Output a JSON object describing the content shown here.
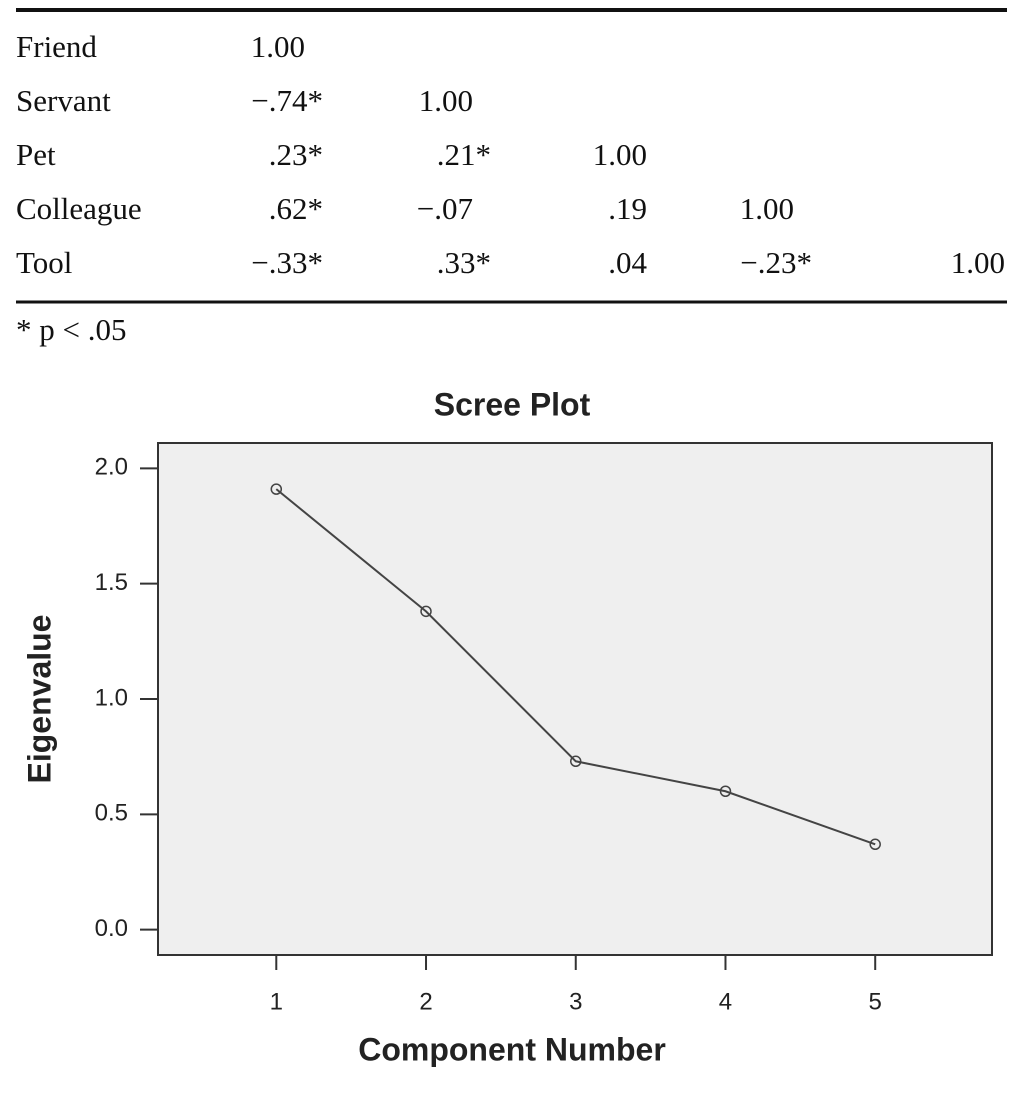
{
  "table": {
    "rows": [
      [
        "Friend",
        "1.00"
      ],
      [
        "Servant",
        "−.74*",
        "1.00"
      ],
      [
        "Pet",
        ".23*",
        ".21*",
        "1.00"
      ],
      [
        "Colleague",
        ".62*",
        "−.07",
        ".19",
        "1.00"
      ],
      [
        "Tool",
        "−.33*",
        ".33*",
        ".04",
        "−.23*",
        "1.00"
      ]
    ],
    "note": "* p < .05"
  },
  "chart_data": {
    "type": "line",
    "title": "Scree Plot",
    "x_label": "Component Number",
    "y_label": "Eigenvalue",
    "x": [
      1,
      2,
      3,
      4,
      5
    ],
    "values": [
      1.91,
      1.38,
      0.73,
      0.6,
      0.37
    ],
    "color": "#444444",
    "xlim": [
      0.21,
      5.78
    ],
    "xticks": [
      1,
      2,
      3,
      4,
      5
    ],
    "ylim": [
      -0.11,
      2.11
    ],
    "yticks": [
      {
        "value": 0,
        "label": "0.0"
      },
      0.5,
      {
        "value": 1,
        "label": "1.0"
      },
      1.5,
      {
        "value": 2,
        "label": "2.0"
      }
    ]
  }
}
